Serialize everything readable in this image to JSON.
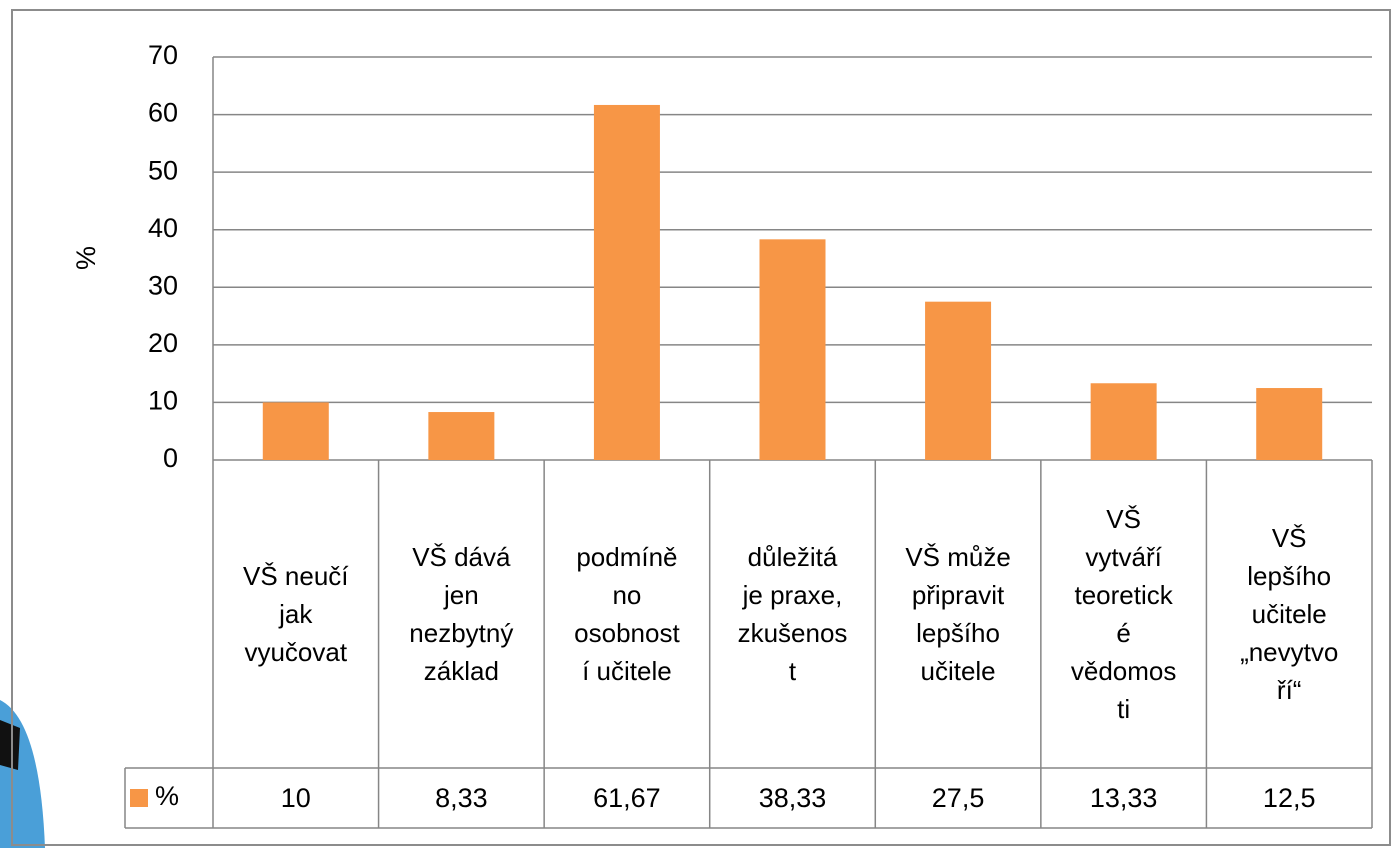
{
  "chart_data": {
    "type": "bar",
    "y_label": "%",
    "categories": [
      "VŠ neučí\njak\nvyučovat",
      "VŠ dává\njen\nnezbytný\nzáklad",
      "podmíně\nno\nosobnost\ní učitele",
      "důležitá\nje praxe,\nzkušenos\nt",
      "VŠ může\npřipravit\nlepšího\nučitele",
      "VŠ\nvytváří\nteoretick\né\nvědomos\nti",
      "VŠ\nlepšího\nučitele\n„nevytvo\nří“"
    ],
    "series": [
      {
        "name": "%",
        "color": "#f79646",
        "values": [
          10,
          8.33,
          61.67,
          38.33,
          27.5,
          13.33,
          12.5
        ],
        "value_labels": [
          "10",
          "8,33",
          "61,67",
          "38,33",
          "27,5",
          "13,33",
          "12,5"
        ]
      }
    ],
    "ylim": [
      0,
      70
    ],
    "yticks": [
      0,
      10,
      20,
      30,
      40,
      50,
      60,
      70
    ],
    "grid": true
  }
}
